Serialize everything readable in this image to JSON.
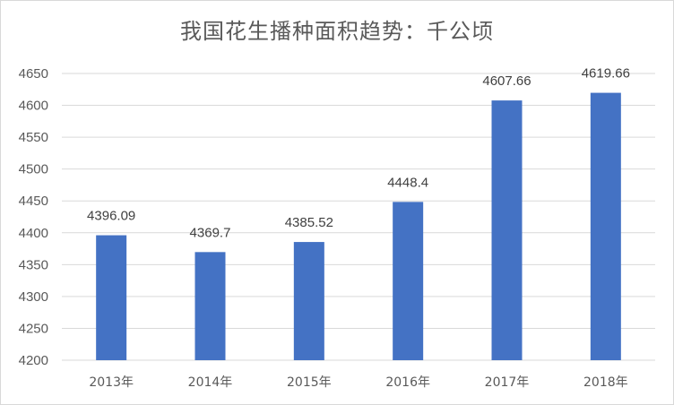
{
  "chart_data": {
    "type": "bar",
    "title": "我国花生播种面积趋势：千公顷",
    "categories": [
      "2013年",
      "2014年",
      "2015年",
      "2016年",
      "2017年",
      "2018年"
    ],
    "values": [
      4396.09,
      4369.7,
      4385.52,
      4448.4,
      4607.66,
      4619.66
    ],
    "value_labels": [
      "4396.09",
      "4369.7",
      "4385.52",
      "4448.4",
      "4607.66",
      "4619.66"
    ],
    "xlabel": "",
    "ylabel": "",
    "ylim": [
      4200,
      4650
    ],
    "yticks": [
      4200,
      4250,
      4300,
      4350,
      4400,
      4450,
      4500,
      4550,
      4600,
      4650
    ],
    "grid": true,
    "legend": "none",
    "bar_color": "#4472c4",
    "grid_color": "#d9d9d9"
  }
}
